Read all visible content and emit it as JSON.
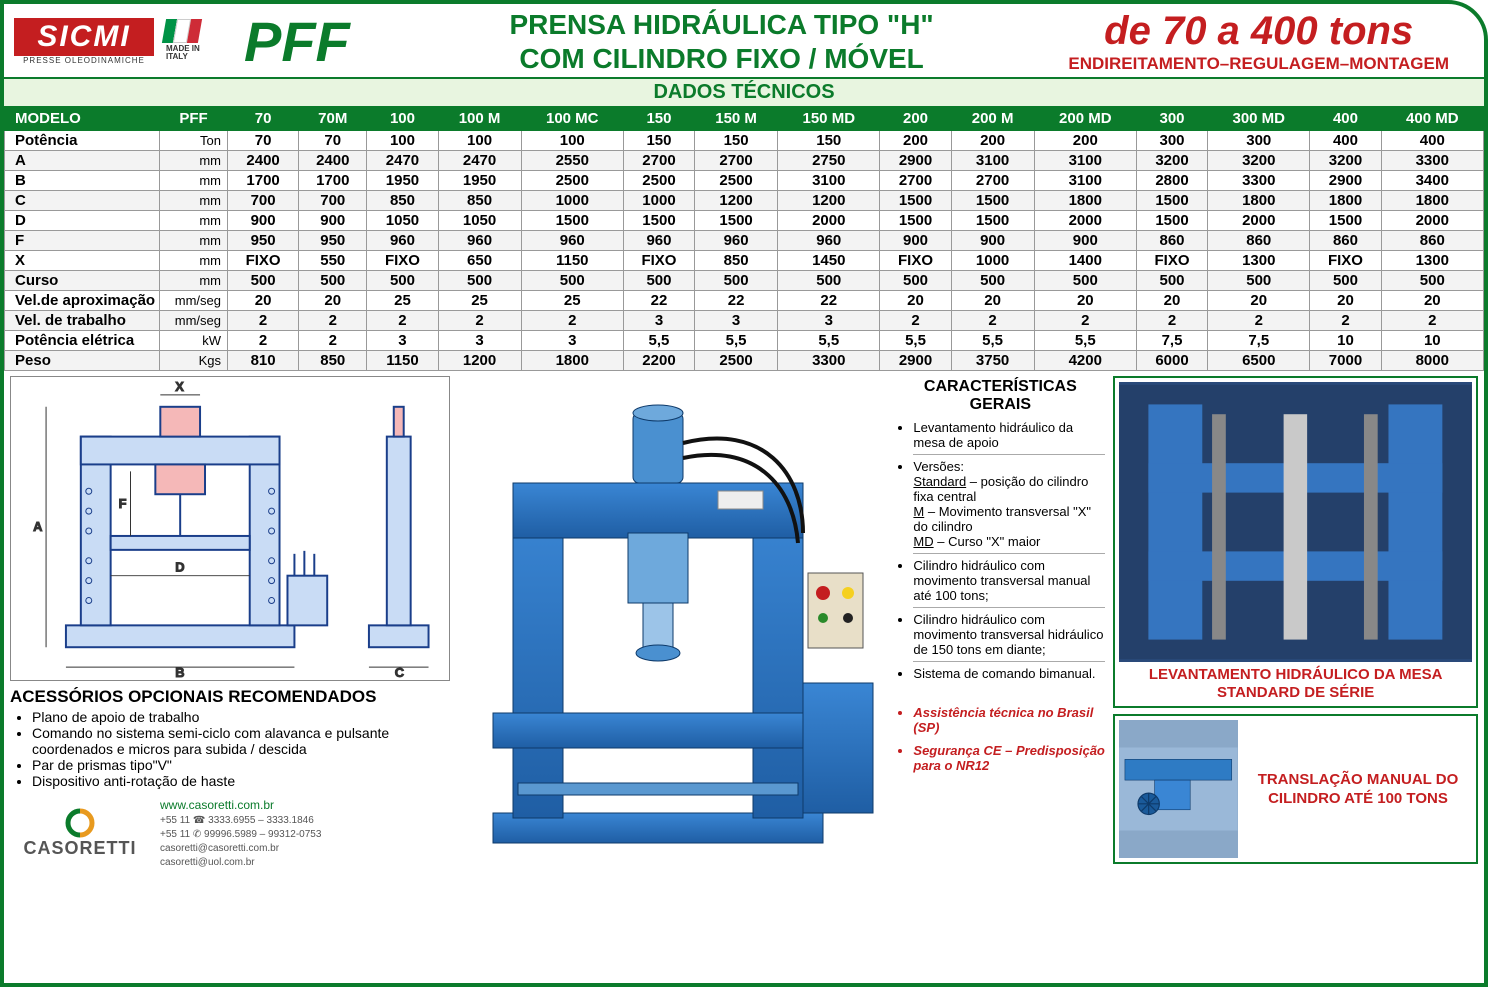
{
  "colors": {
    "green": "#0b7b2b",
    "red": "#c41e20",
    "green_light": "#e8f5e0",
    "press_blue": "#2e7bc4",
    "press_blue_dark": "#1a5a9a"
  },
  "header": {
    "brand_name": "SICMI",
    "brand_sub": "PRESSE OLEODINAMICHE",
    "flag_label": "MADE IN ITALY",
    "model_code": "PFF",
    "title_line1": "PRENSA HIDRÁULICA TIPO \"H\"",
    "title_line2": "COM CILINDRO FIXO / MÓVEL",
    "right_line1": "de 70 a 400 tons",
    "right_line2": "ENDIREITAMENTO–REGULAGEM–MONTAGEM"
  },
  "table": {
    "title": "DADOS TÉCNICOS",
    "model_label": "MODELO",
    "pff_label": "PFF",
    "models": [
      "70",
      "70M",
      "100",
      "100 M",
      "100 MC",
      "150",
      "150 M",
      "150 MD",
      "200",
      "200 M",
      "200 MD",
      "300",
      "300 MD",
      "400",
      "400 MD"
    ],
    "rows": [
      {
        "label": "Potência",
        "unit": "Ton",
        "v": [
          "70",
          "70",
          "100",
          "100",
          "100",
          "150",
          "150",
          "150",
          "200",
          "200",
          "200",
          "300",
          "300",
          "400",
          "400"
        ]
      },
      {
        "label": "A",
        "unit": "mm",
        "v": [
          "2400",
          "2400",
          "2470",
          "2470",
          "2550",
          "2700",
          "2700",
          "2750",
          "2900",
          "3100",
          "3100",
          "3200",
          "3200",
          "3200",
          "3300"
        ]
      },
      {
        "label": "B",
        "unit": "mm",
        "v": [
          "1700",
          "1700",
          "1950",
          "1950",
          "2500",
          "2500",
          "2500",
          "3100",
          "2700",
          "2700",
          "3100",
          "2800",
          "3300",
          "2900",
          "3400"
        ]
      },
      {
        "label": "C",
        "unit": "mm",
        "v": [
          "700",
          "700",
          "850",
          "850",
          "1000",
          "1000",
          "1200",
          "1200",
          "1500",
          "1500",
          "1800",
          "1500",
          "1800",
          "1800",
          "1800"
        ]
      },
      {
        "label": "D",
        "unit": "mm",
        "v": [
          "900",
          "900",
          "1050",
          "1050",
          "1500",
          "1500",
          "1500",
          "2000",
          "1500",
          "1500",
          "2000",
          "1500",
          "2000",
          "1500",
          "2000"
        ]
      },
      {
        "label": "F",
        "unit": "mm",
        "v": [
          "950",
          "950",
          "960",
          "960",
          "960",
          "960",
          "960",
          "960",
          "900",
          "900",
          "900",
          "860",
          "860",
          "860",
          "860"
        ]
      },
      {
        "label": "X",
        "unit": "mm",
        "v": [
          "FIXO",
          "550",
          "FIXO",
          "650",
          "1150",
          "FIXO",
          "850",
          "1450",
          "FIXO",
          "1000",
          "1400",
          "FIXO",
          "1300",
          "FIXO",
          "1300"
        ]
      },
      {
        "label": "Curso",
        "unit": "mm",
        "v": [
          "500",
          "500",
          "500",
          "500",
          "500",
          "500",
          "500",
          "500",
          "500",
          "500",
          "500",
          "500",
          "500",
          "500",
          "500"
        ]
      },
      {
        "label": "Vel.de aproximação",
        "unit": "mm/seg",
        "v": [
          "20",
          "20",
          "25",
          "25",
          "25",
          "22",
          "22",
          "22",
          "20",
          "20",
          "20",
          "20",
          "20",
          "20",
          "20"
        ]
      },
      {
        "label": "Vel. de trabalho",
        "unit": "mm/seg",
        "v": [
          "2",
          "2",
          "2",
          "2",
          "2",
          "3",
          "3",
          "3",
          "2",
          "2",
          "2",
          "2",
          "2",
          "2",
          "2"
        ]
      },
      {
        "label": "Potência elétrica",
        "unit": "kW",
        "v": [
          "2",
          "2",
          "3",
          "3",
          "3",
          "5,5",
          "5,5",
          "5,5",
          "5,5",
          "5,5",
          "5,5",
          "7,5",
          "7,5",
          "10",
          "10"
        ]
      },
      {
        "label": "Peso",
        "unit": "Kgs",
        "v": [
          "810",
          "850",
          "1150",
          "1200",
          "1800",
          "2200",
          "2500",
          "3300",
          "2900",
          "3750",
          "4200",
          "6000",
          "6500",
          "7000",
          "8000"
        ]
      }
    ]
  },
  "diagram_labels": {
    "A": "A",
    "B": "B",
    "C": "C",
    "D": "D",
    "F": "F",
    "X": "X"
  },
  "accessories": {
    "title": "ACESSÓRIOS OPCIONAIS RECOMENDADOS",
    "items": [
      "Plano de apoio de trabalho",
      "Comando no sistema semi-ciclo com alavanca e pulsante coordenados e micros para subida / descida",
      "Par de prismas tipo\"V\"",
      "Dispositivo anti-rotação de haste"
    ]
  },
  "contact": {
    "web": "www.casoretti.com.br",
    "phone1": "+55 11 ☎ 3333.6955 – 3333.1846",
    "phone2": "+55 11 ✆ 99996.5989 – 99312-0753",
    "email1": "casoretti@casoretti.com.br",
    "email2": "casoretti@uol.com.br",
    "brand": "CASORETTI"
  },
  "features": {
    "title": "CARACTERÍSTICAS GERAIS",
    "items": [
      "Levantamento hidráulico da mesa de apoio",
      "Versões:<br><u>Standard</u> – posição do cilindro fixa central<br><u>M</u> – Movimento transversal \"X\" do cilindro<br><u>MD</u> – Curso \"X\" maior",
      "Cilindro hidráulico com movimento transversal manual até 100 tons;",
      "Cilindro hidráulico com movimento transversal hidráulico de 150 tons em diante;",
      "Sistema de comando bimanual."
    ],
    "notes": [
      "Assistência técnica no Brasil (SP)",
      "Segurança CE – Predisposição para o NR12"
    ]
  },
  "photo1": {
    "caption": "LEVANTAMENTO HIDRÁULICO DA MESA STANDARD DE SÉRIE"
  },
  "photo2": {
    "caption": "TRANSLAÇÃO MANUAL DO CILINDRO ATÉ 100 TONS"
  }
}
